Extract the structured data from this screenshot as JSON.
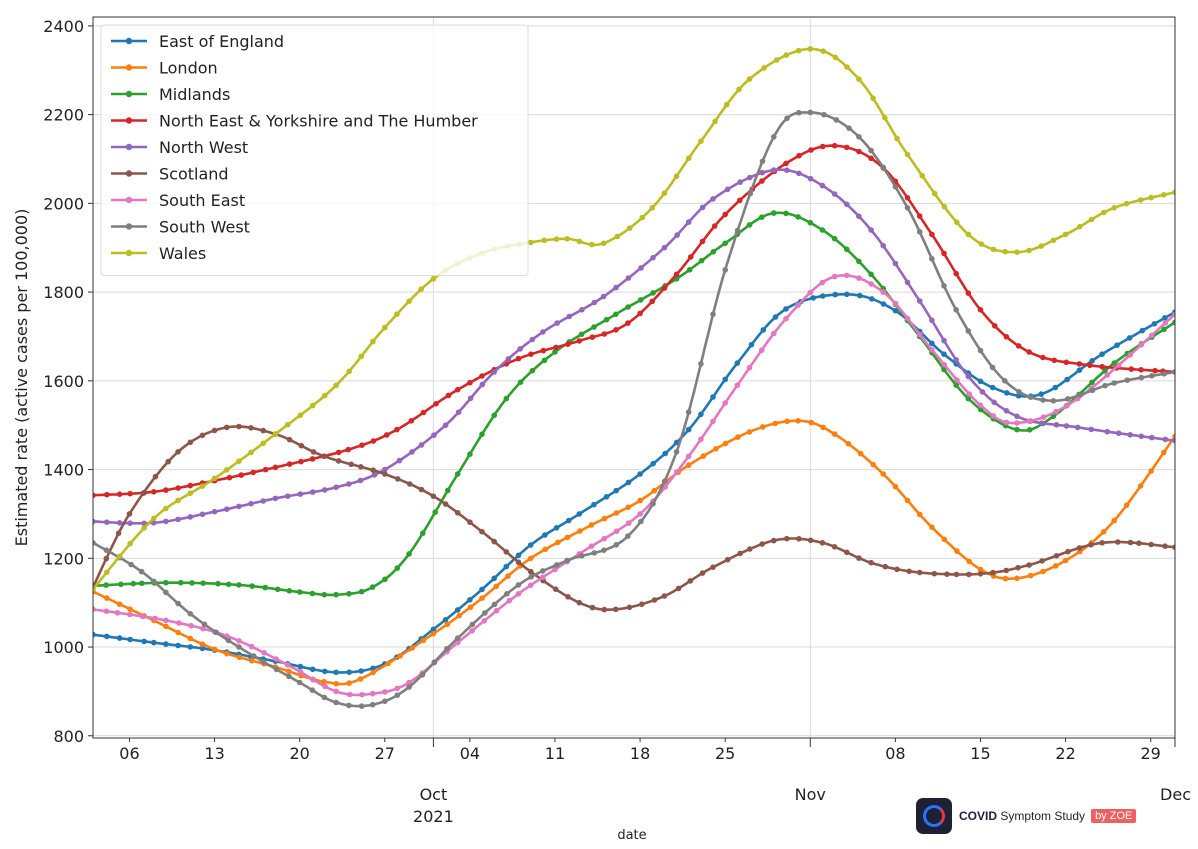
{
  "chart_data": {
    "type": "line",
    "xlabel": "date",
    "ylabel": "Estimated rate (active cases per 100,000)",
    "ylim": [
      795,
      2420
    ],
    "xlim": [
      "2021-09-03",
      "2021-12-01"
    ],
    "y_ticks": [
      800,
      1000,
      1200,
      1400,
      1600,
      1800,
      2000,
      2200,
      2400
    ],
    "x_minor_ticks": [
      {
        "date": "2021-09-06",
        "label": "06"
      },
      {
        "date": "2021-09-13",
        "label": "13"
      },
      {
        "date": "2021-09-20",
        "label": "20"
      },
      {
        "date": "2021-09-27",
        "label": "27"
      },
      {
        "date": "2021-10-04",
        "label": "04"
      },
      {
        "date": "2021-10-11",
        "label": "11"
      },
      {
        "date": "2021-10-18",
        "label": "18"
      },
      {
        "date": "2021-10-25",
        "label": "25"
      },
      {
        "date": "2021-11-08",
        "label": "08"
      },
      {
        "date": "2021-11-15",
        "label": "15"
      },
      {
        "date": "2021-11-22",
        "label": "22"
      },
      {
        "date": "2021-11-29",
        "label": "29"
      }
    ],
    "x_major_ticks": [
      {
        "date": "2021-10-01",
        "label": "Oct",
        "sublabel": "2021"
      },
      {
        "date": "2021-11-01",
        "label": "Nov",
        "sublabel": ""
      },
      {
        "date": "2021-12-01",
        "label": "Dec",
        "sublabel": ""
      }
    ],
    "grid": true,
    "legend_position": "top-left",
    "series": [
      {
        "name": "East of England",
        "color": "#1f77b4",
        "points": [
          [
            "2021-09-03",
            1028
          ],
          [
            "2021-09-08",
            1010
          ],
          [
            "2021-09-13",
            993
          ],
          [
            "2021-09-18",
            968
          ],
          [
            "2021-09-23",
            943
          ],
          [
            "2021-09-27",
            962
          ],
          [
            "2021-10-01",
            1040
          ],
          [
            "2021-10-05",
            1130
          ],
          [
            "2021-10-09",
            1230
          ],
          [
            "2021-10-13",
            1300
          ],
          [
            "2021-10-18",
            1390
          ],
          [
            "2021-10-22",
            1490
          ],
          [
            "2021-10-26",
            1640
          ],
          [
            "2021-10-30",
            1762
          ],
          [
            "2021-11-04",
            1795
          ],
          [
            "2021-11-08",
            1758
          ],
          [
            "2021-11-12",
            1660
          ],
          [
            "2021-11-16",
            1585
          ],
          [
            "2021-11-20",
            1570
          ],
          [
            "2021-11-25",
            1660
          ],
          [
            "2021-12-01",
            1755
          ]
        ]
      },
      {
        "name": "London",
        "color": "#ff7f0e",
        "points": [
          [
            "2021-09-03",
            1125
          ],
          [
            "2021-09-08",
            1060
          ],
          [
            "2021-09-13",
            995
          ],
          [
            "2021-09-18",
            955
          ],
          [
            "2021-09-22",
            922
          ],
          [
            "2021-09-25",
            928
          ],
          [
            "2021-10-01",
            1030
          ],
          [
            "2021-10-05",
            1110
          ],
          [
            "2021-10-09",
            1200
          ],
          [
            "2021-10-14",
            1275
          ],
          [
            "2021-10-18",
            1330
          ],
          [
            "2021-10-22",
            1410
          ],
          [
            "2021-10-27",
            1485
          ],
          [
            "2021-10-31",
            1510
          ],
          [
            "2021-11-03",
            1480
          ],
          [
            "2021-11-07",
            1390
          ],
          [
            "2021-11-11",
            1270
          ],
          [
            "2021-11-15",
            1175
          ],
          [
            "2021-11-18",
            1155
          ],
          [
            "2021-11-22",
            1195
          ],
          [
            "2021-11-26",
            1285
          ],
          [
            "2021-12-01",
            1475
          ]
        ]
      },
      {
        "name": "Midlands",
        "color": "#2ca02c",
        "points": [
          [
            "2021-09-03",
            1138
          ],
          [
            "2021-09-09",
            1145
          ],
          [
            "2021-09-15",
            1140
          ],
          [
            "2021-09-20",
            1124
          ],
          [
            "2021-09-23",
            1118
          ],
          [
            "2021-09-26",
            1135
          ],
          [
            "2021-09-29",
            1210
          ],
          [
            "2021-10-03",
            1390
          ],
          [
            "2021-10-07",
            1560
          ],
          [
            "2021-10-11",
            1665
          ],
          [
            "2021-10-16",
            1750
          ],
          [
            "2021-10-21",
            1830
          ],
          [
            "2021-10-25",
            1910
          ],
          [
            "2021-10-29",
            1978
          ],
          [
            "2021-11-02",
            1940
          ],
          [
            "2021-11-06",
            1840
          ],
          [
            "2021-11-10",
            1700
          ],
          [
            "2021-11-14",
            1560
          ],
          [
            "2021-11-18",
            1490
          ],
          [
            "2021-11-21",
            1520
          ],
          [
            "2021-11-26",
            1640
          ],
          [
            "2021-12-01",
            1732
          ]
        ]
      },
      {
        "name": "North East & Yorkshire and The Humber",
        "color": "#d62728",
        "points": [
          [
            "2021-09-03",
            1342
          ],
          [
            "2021-09-08",
            1350
          ],
          [
            "2021-09-13",
            1375
          ],
          [
            "2021-09-18",
            1405
          ],
          [
            "2021-09-24",
            1445
          ],
          [
            "2021-09-28",
            1490
          ],
          [
            "2021-10-03",
            1580
          ],
          [
            "2021-10-08",
            1650
          ],
          [
            "2021-10-13",
            1690
          ],
          [
            "2021-10-17",
            1730
          ],
          [
            "2021-10-21",
            1840
          ],
          [
            "2021-10-25",
            1975
          ],
          [
            "2021-10-30",
            2090
          ],
          [
            "2021-11-03",
            2130
          ],
          [
            "2021-11-07",
            2080
          ],
          [
            "2021-11-11",
            1930
          ],
          [
            "2021-11-15",
            1760
          ],
          [
            "2021-11-19",
            1665
          ],
          [
            "2021-11-24",
            1635
          ],
          [
            "2021-12-01",
            1620
          ]
        ]
      },
      {
        "name": "North West",
        "color": "#9467bd",
        "points": [
          [
            "2021-09-03",
            1283
          ],
          [
            "2021-09-08",
            1280
          ],
          [
            "2021-09-13",
            1305
          ],
          [
            "2021-09-18",
            1335
          ],
          [
            "2021-09-23",
            1360
          ],
          [
            "2021-09-27",
            1400
          ],
          [
            "2021-10-02",
            1500
          ],
          [
            "2021-10-06",
            1620
          ],
          [
            "2021-10-10",
            1710
          ],
          [
            "2021-10-15",
            1790
          ],
          [
            "2021-10-20",
            1900
          ],
          [
            "2021-10-24",
            2010
          ],
          [
            "2021-10-29",
            2075
          ],
          [
            "2021-11-02",
            2040
          ],
          [
            "2021-11-06",
            1940
          ],
          [
            "2021-11-10",
            1780
          ],
          [
            "2021-11-14",
            1610
          ],
          [
            "2021-11-18",
            1520
          ],
          [
            "2021-11-23",
            1495
          ],
          [
            "2021-12-01",
            1465
          ]
        ]
      },
      {
        "name": "Scotland",
        "color": "#8c564b",
        "points": [
          [
            "2021-09-03",
            1135
          ],
          [
            "2021-09-06",
            1300
          ],
          [
            "2021-09-10",
            1440
          ],
          [
            "2021-09-14",
            1495
          ],
          [
            "2021-09-18",
            1480
          ],
          [
            "2021-09-22",
            1430
          ],
          [
            "2021-09-27",
            1390
          ],
          [
            "2021-10-01",
            1340
          ],
          [
            "2021-10-05",
            1260
          ],
          [
            "2021-10-09",
            1170
          ],
          [
            "2021-10-13",
            1100
          ],
          [
            "2021-10-16",
            1085
          ],
          [
            "2021-10-20",
            1115
          ],
          [
            "2021-10-24",
            1180
          ],
          [
            "2021-10-29",
            1240
          ],
          [
            "2021-11-02",
            1235
          ],
          [
            "2021-11-06",
            1190
          ],
          [
            "2021-11-10",
            1168
          ],
          [
            "2021-11-15",
            1165
          ],
          [
            "2021-11-19",
            1185
          ],
          [
            "2021-11-25",
            1235
          ],
          [
            "2021-12-01",
            1225
          ]
        ]
      },
      {
        "name": "South East",
        "color": "#e377c2",
        "points": [
          [
            "2021-09-03",
            1085
          ],
          [
            "2021-09-09",
            1060
          ],
          [
            "2021-09-14",
            1025
          ],
          [
            "2021-09-19",
            960
          ],
          [
            "2021-09-23",
            900
          ],
          [
            "2021-09-26",
            895
          ],
          [
            "2021-09-29",
            920
          ],
          [
            "2021-10-03",
            1010
          ],
          [
            "2021-10-08",
            1120
          ],
          [
            "2021-10-13",
            1210
          ],
          [
            "2021-10-18",
            1300
          ],
          [
            "2021-10-22",
            1430
          ],
          [
            "2021-10-26",
            1590
          ],
          [
            "2021-10-30",
            1740
          ],
          [
            "2021-11-03",
            1835
          ],
          [
            "2021-11-07",
            1800
          ],
          [
            "2021-11-11",
            1670
          ],
          [
            "2021-11-15",
            1545
          ],
          [
            "2021-11-18",
            1505
          ],
          [
            "2021-11-23",
            1560
          ],
          [
            "2021-12-01",
            1750
          ]
        ]
      },
      {
        "name": "South West",
        "color": "#7f7f7f",
        "points": [
          [
            "2021-09-03",
            1235
          ],
          [
            "2021-09-07",
            1170
          ],
          [
            "2021-09-11",
            1075
          ],
          [
            "2021-09-15",
            1000
          ],
          [
            "2021-09-20",
            920
          ],
          [
            "2021-09-23",
            875
          ],
          [
            "2021-09-26",
            870
          ],
          [
            "2021-09-29",
            910
          ],
          [
            "2021-10-03",
            1020
          ],
          [
            "2021-10-08",
            1140
          ],
          [
            "2021-10-12",
            1195
          ],
          [
            "2021-10-17",
            1250
          ],
          [
            "2021-10-21",
            1440
          ],
          [
            "2021-10-25",
            1850
          ],
          [
            "2021-10-29",
            2150
          ],
          [
            "2021-11-01",
            2205
          ],
          [
            "2021-11-05",
            2150
          ],
          [
            "2021-11-09",
            1990
          ],
          [
            "2021-11-13",
            1760
          ],
          [
            "2021-11-17",
            1600
          ],
          [
            "2021-11-21",
            1555
          ],
          [
            "2021-11-26",
            1595
          ],
          [
            "2021-12-01",
            1620
          ]
        ]
      },
      {
        "name": "Wales",
        "color": "#bcbd22",
        "points": [
          [
            "2021-09-03",
            1130
          ],
          [
            "2021-09-08",
            1290
          ],
          [
            "2021-09-13",
            1380
          ],
          [
            "2021-09-18",
            1480
          ],
          [
            "2021-09-23",
            1590
          ],
          [
            "2021-09-27",
            1720
          ],
          [
            "2021-10-01",
            1830
          ],
          [
            "2021-10-05",
            1888
          ],
          [
            "2021-10-09",
            1912
          ],
          [
            "2021-10-12",
            1920
          ],
          [
            "2021-10-15",
            1910
          ],
          [
            "2021-10-19",
            1990
          ],
          [
            "2021-10-23",
            2140
          ],
          [
            "2021-10-27",
            2280
          ],
          [
            "2021-11-01",
            2348
          ],
          [
            "2021-11-05",
            2280
          ],
          [
            "2021-11-09",
            2110
          ],
          [
            "2021-11-14",
            1930
          ],
          [
            "2021-11-18",
            1890
          ],
          [
            "2021-11-22",
            1930
          ],
          [
            "2021-11-26",
            1990
          ],
          [
            "2021-12-01",
            2025
          ]
        ]
      }
    ]
  },
  "logo": {
    "name": "COVID",
    "suffix": "Symptom Study",
    "badge": "by ZOE"
  }
}
